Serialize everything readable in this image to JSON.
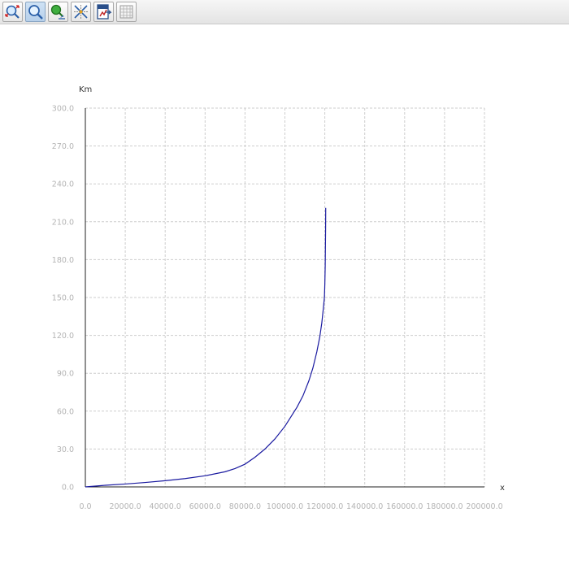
{
  "toolbar": {
    "buttons": [
      {
        "icon": "zoom-fit-icon"
      },
      {
        "icon": "zoom-icon",
        "active": true
      },
      {
        "icon": "pan-icon"
      },
      {
        "icon": "crosshair-icon"
      },
      {
        "icon": "export-icon"
      },
      {
        "icon": "grid-icon"
      }
    ]
  },
  "chart_data": {
    "type": "line",
    "title": "",
    "xlabel": "x",
    "ylabel": "Km",
    "xlim": [
      0,
      200000
    ],
    "ylim": [
      0,
      300
    ],
    "x_ticks": [
      "0.0",
      "20000.0",
      "40000.0",
      "60000.0",
      "80000.0",
      "100000.0",
      "120000.0",
      "140000.0",
      "160000.0",
      "180000.0",
      "200000.0"
    ],
    "y_ticks": [
      "0.0",
      "30.0",
      "60.0",
      "90.0",
      "120.0",
      "150.0",
      "180.0",
      "210.0",
      "240.0",
      "270.0",
      "300.0"
    ],
    "grid": true,
    "line_color": "#1a1aa0",
    "series": [
      {
        "x": [
          0,
          10000,
          20000,
          30000,
          40000,
          50000,
          60000,
          70000,
          75000,
          80000,
          85000,
          90000,
          95000,
          100000,
          103000,
          106000,
          109000,
          112000,
          114000,
          116000,
          117500,
          118500,
          119300,
          119800,
          120000,
          120200,
          120300,
          120400,
          120450
        ],
        "y": [
          0,
          1.3,
          2.3,
          3.5,
          4.9,
          6.6,
          8.8,
          12.0,
          14.5,
          18.0,
          23.5,
          30.0,
          38.0,
          48.0,
          55.5,
          63.0,
          72.0,
          84.0,
          94.0,
          107.0,
          119.0,
          130.0,
          142.0,
          150.0,
          160.0,
          175.0,
          190.0,
          205.0,
          221.0
        ]
      }
    ]
  }
}
